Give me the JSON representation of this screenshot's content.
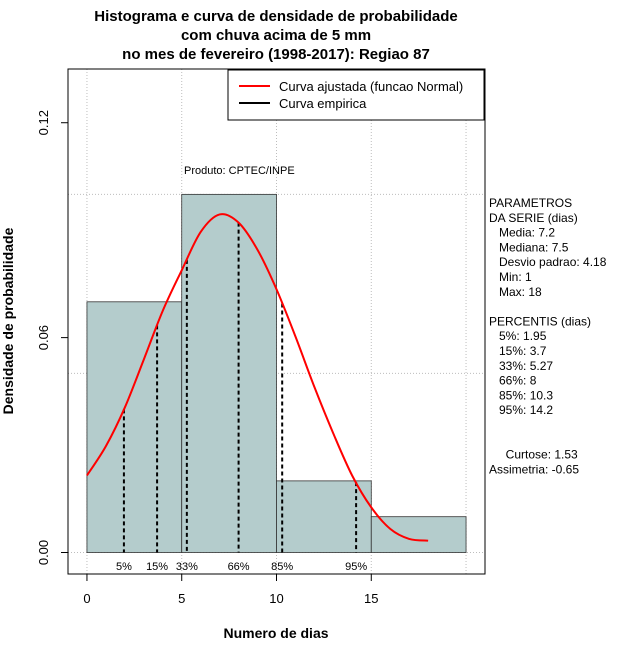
{
  "chart_data": {
    "type": "histogram",
    "title_lines": [
      "Histograma e curva de densidade de probabilidade",
      "com chuva acima de 5 mm",
      "no mes de fevereiro (1998-2017): Regiao 87"
    ],
    "xlabel": "Numero de dias",
    "ylabel": "Densidade de probabilidade",
    "xlim": [
      -1,
      21
    ],
    "ylim": [
      -0.006,
      0.135
    ],
    "x_ticks": [
      0,
      5,
      10,
      15
    ],
    "y_ticks": [
      0.0,
      0.06,
      0.12
    ],
    "y_tick_labels": [
      "0.00",
      "0.06",
      "0.12"
    ],
    "grid": true,
    "bins": [
      {
        "x0": 0,
        "x1": 5,
        "density": 0.07
      },
      {
        "x0": 5,
        "x1": 10,
        "density": 0.1
      },
      {
        "x0": 10,
        "x1": 15,
        "density": 0.02
      },
      {
        "x0": 15,
        "x1": 20,
        "density": 0.01
      }
    ],
    "bar_color": "#b4cccc",
    "curve_color": "#ff0000",
    "normal_curve": {
      "mean": 7.2,
      "sd": 4.18,
      "x_from": 0,
      "x_to": 18
    },
    "curve_points": [
      {
        "x": 0,
        "y": 0.0215
      },
      {
        "x": 1,
        "y": 0.0297
      },
      {
        "x": 2,
        "y": 0.0405
      },
      {
        "x": 3,
        "y": 0.0539
      },
      {
        "x": 4,
        "y": 0.0675
      },
      {
        "x": 5,
        "y": 0.0788
      },
      {
        "x": 6,
        "y": 0.0895
      },
      {
        "x": 7,
        "y": 0.0944
      },
      {
        "x": 8,
        "y": 0.0921
      },
      {
        "x": 9,
        "y": 0.0845
      },
      {
        "x": 10,
        "y": 0.0735
      },
      {
        "x": 11,
        "y": 0.0603
      },
      {
        "x": 12,
        "y": 0.0462
      },
      {
        "x": 13,
        "y": 0.0332
      },
      {
        "x": 14,
        "y": 0.0214
      },
      {
        "x": 15,
        "y": 0.0126
      },
      {
        "x": 16,
        "y": 0.0066
      },
      {
        "x": 17,
        "y": 0.0038
      },
      {
        "x": 18,
        "y": 0.0033
      }
    ],
    "percentile_lines": [
      {
        "label": "5%",
        "x": 1.95
      },
      {
        "label": "15%",
        "x": 3.7
      },
      {
        "label": "33%",
        "x": 5.27
      },
      {
        "label": "66%",
        "x": 8
      },
      {
        "label": "85%",
        "x": 10.3
      },
      {
        "label": "95%",
        "x": 14.2
      }
    ],
    "legend": {
      "position": "top-right",
      "entries": [
        {
          "label": "Curva ajustada (funcao Normal)",
          "color": "#ff0000"
        },
        {
          "label": "Curva empirica",
          "color": "#000000"
        }
      ]
    },
    "annotation": "Produto: CPTEC/INPE",
    "side_text": [
      "PARAMETROS",
      "DA SERIE (dias)",
      "   Media: 7.2",
      "   Mediana: 7.5",
      "   Desvio padrao: 4.18",
      "   Min: 1",
      "   Max: 18",
      "",
      "PERCENTIS (dias)",
      "   5%: 1.95",
      "   15%: 3.7",
      "   33%: 5.27",
      "   66%: 8",
      "   85%: 10.3",
      "   95%: 14.2",
      "",
      "",
      "     Curtose: 1.53",
      "Assimetria: -0.65"
    ]
  }
}
